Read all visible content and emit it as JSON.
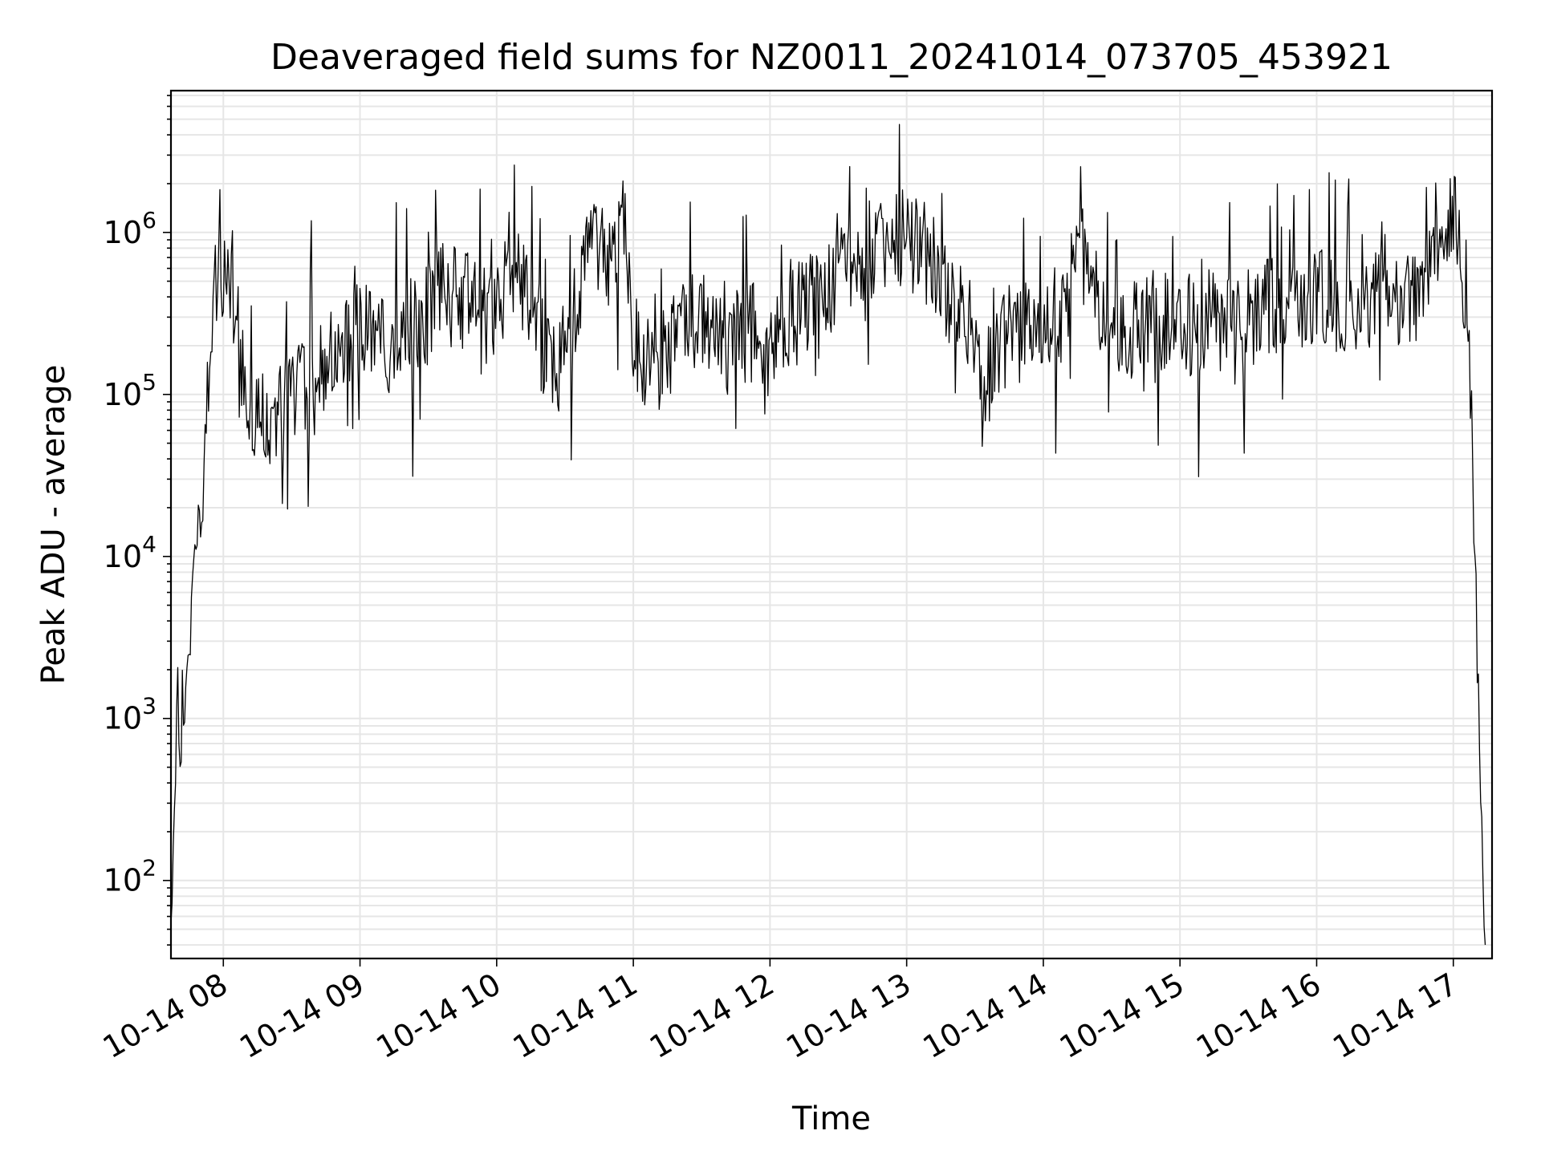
{
  "chart_data": {
    "type": "line",
    "title": "Deaveraged field sums for NZ0011_20241014_073705_453921",
    "xlabel": "Time",
    "ylabel": "Peak ADU - average",
    "yscale": "log",
    "ylim": [
      33,
      7500000
    ],
    "xlim": [
      "2024-10-14 07:37",
      "2024-10-14 17:17"
    ],
    "grid": true,
    "line_color": "#000000",
    "grid_color": "#e6e6e6",
    "x_ticks": [
      {
        "time": "2024-10-14 08:00",
        "label": "10-14 08"
      },
      {
        "time": "2024-10-14 09:00",
        "label": "10-14 09"
      },
      {
        "time": "2024-10-14 10:00",
        "label": "10-14 10"
      },
      {
        "time": "2024-10-14 11:00",
        "label": "10-14 11"
      },
      {
        "time": "2024-10-14 12:00",
        "label": "10-14 12"
      },
      {
        "time": "2024-10-14 13:00",
        "label": "10-14 13"
      },
      {
        "time": "2024-10-14 14:00",
        "label": "10-14 14"
      },
      {
        "time": "2024-10-14 15:00",
        "label": "10-14 15"
      },
      {
        "time": "2024-10-14 16:00",
        "label": "10-14 16"
      },
      {
        "time": "2024-10-14 17:00",
        "label": "10-14 17"
      }
    ],
    "y_ticks": [
      {
        "value": 100,
        "base": "10",
        "exp": "2"
      },
      {
        "value": 1000,
        "base": "10",
        "exp": "3"
      },
      {
        "value": 10000,
        "base": "10",
        "exp": "4"
      },
      {
        "value": 100000,
        "base": "10",
        "exp": "5"
      },
      {
        "value": 1000000,
        "base": "10",
        "exp": "6"
      }
    ],
    "series": [
      {
        "x": [
          "2024-10-14 07:37",
          "2024-10-14 07:38",
          "2024-10-14 07:39",
          "2024-10-14 07:40",
          "2024-10-14 07:41",
          "2024-10-14 07:42",
          "2024-10-14 07:43",
          "2024-10-14 07:44",
          "2024-10-14 07:46",
          "2024-10-14 07:48",
          "2024-10-14 07:50",
          "2024-10-14 07:52",
          "2024-10-14 07:54",
          "2024-10-14 07:56",
          "2024-10-14 07:58",
          "2024-10-14 08:00",
          "2024-10-14 08:02",
          "2024-10-14 08:04",
          "2024-10-14 08:06",
          "2024-10-14 08:08",
          "2024-10-14 08:10",
          "2024-10-14 08:15",
          "2024-10-14 08:20",
          "2024-10-14 08:25",
          "2024-10-14 08:30",
          "2024-10-14 08:40",
          "2024-10-14 08:50",
          "2024-10-14 09:00",
          "2024-10-14 09:10",
          "2024-10-14 09:20",
          "2024-10-14 09:30",
          "2024-10-14 09:35",
          "2024-10-14 09:40",
          "2024-10-14 09:50",
          "2024-10-14 10:00",
          "2024-10-14 10:05",
          "2024-10-14 10:10",
          "2024-10-14 10:20",
          "2024-10-14 10:30",
          "2024-10-14 10:35",
          "2024-10-14 10:40",
          "2024-10-14 10:45",
          "2024-10-14 10:50",
          "2024-10-14 10:55",
          "2024-10-14 11:00",
          "2024-10-14 11:10",
          "2024-10-14 11:20",
          "2024-10-14 11:30",
          "2024-10-14 11:40",
          "2024-10-14 11:50",
          "2024-10-14 12:00",
          "2024-10-14 12:10",
          "2024-10-14 12:20",
          "2024-10-14 12:30",
          "2024-10-14 12:40",
          "2024-10-14 12:50",
          "2024-10-14 13:00",
          "2024-10-14 13:10",
          "2024-10-14 13:20",
          "2024-10-14 13:30",
          "2024-10-14 13:35",
          "2024-10-14 13:40",
          "2024-10-14 13:50",
          "2024-10-14 14:00",
          "2024-10-14 14:10",
          "2024-10-14 14:15",
          "2024-10-14 14:20",
          "2024-10-14 14:30",
          "2024-10-14 14:40",
          "2024-10-14 14:50",
          "2024-10-14 15:00",
          "2024-10-14 15:10",
          "2024-10-14 15:20",
          "2024-10-14 15:30",
          "2024-10-14 15:40",
          "2024-10-14 15:50",
          "2024-10-14 16:00",
          "2024-10-14 16:10",
          "2024-10-14 16:20",
          "2024-10-14 16:30",
          "2024-10-14 16:40",
          "2024-10-14 16:50",
          "2024-10-14 16:55",
          "2024-10-14 17:00",
          "2024-10-14 17:03",
          "2024-10-14 17:06",
          "2024-10-14 17:08",
          "2024-10-14 17:10",
          "2024-10-14 17:11",
          "2024-10-14 17:12",
          "2024-10-14 17:13",
          "2024-10-14 17:14"
        ],
        "y": [
          40,
          150,
          600,
          1000,
          400,
          1200,
          800,
          2000,
          5000,
          9000,
          20000,
          60000,
          200000,
          400000,
          500000,
          650000,
          600000,
          450000,
          300000,
          150000,
          90000,
          80000,
          70000,
          80000,
          90000,
          120000,
          200000,
          250000,
          200000,
          250000,
          300000,
          500000,
          400000,
          350000,
          300000,
          500000,
          600000,
          200000,
          150000,
          400000,
          900000,
          1200000,
          600000,
          1500000,
          200000,
          150000,
          250000,
          300000,
          200000,
          250000,
          200000,
          300000,
          400000,
          700000,
          500000,
          800000,
          900000,
          700000,
          400000,
          250000,
          100000,
          200000,
          300000,
          250000,
          350000,
          900000,
          500000,
          300000,
          250000,
          300000,
          250000,
          300000,
          250000,
          300000,
          350000,
          350000,
          400000,
          350000,
          380000,
          400000,
          420000,
          500000,
          700000,
          1500000,
          700000,
          400000,
          80000,
          5000,
          1000,
          200,
          100,
          40
        ]
      }
    ]
  }
}
